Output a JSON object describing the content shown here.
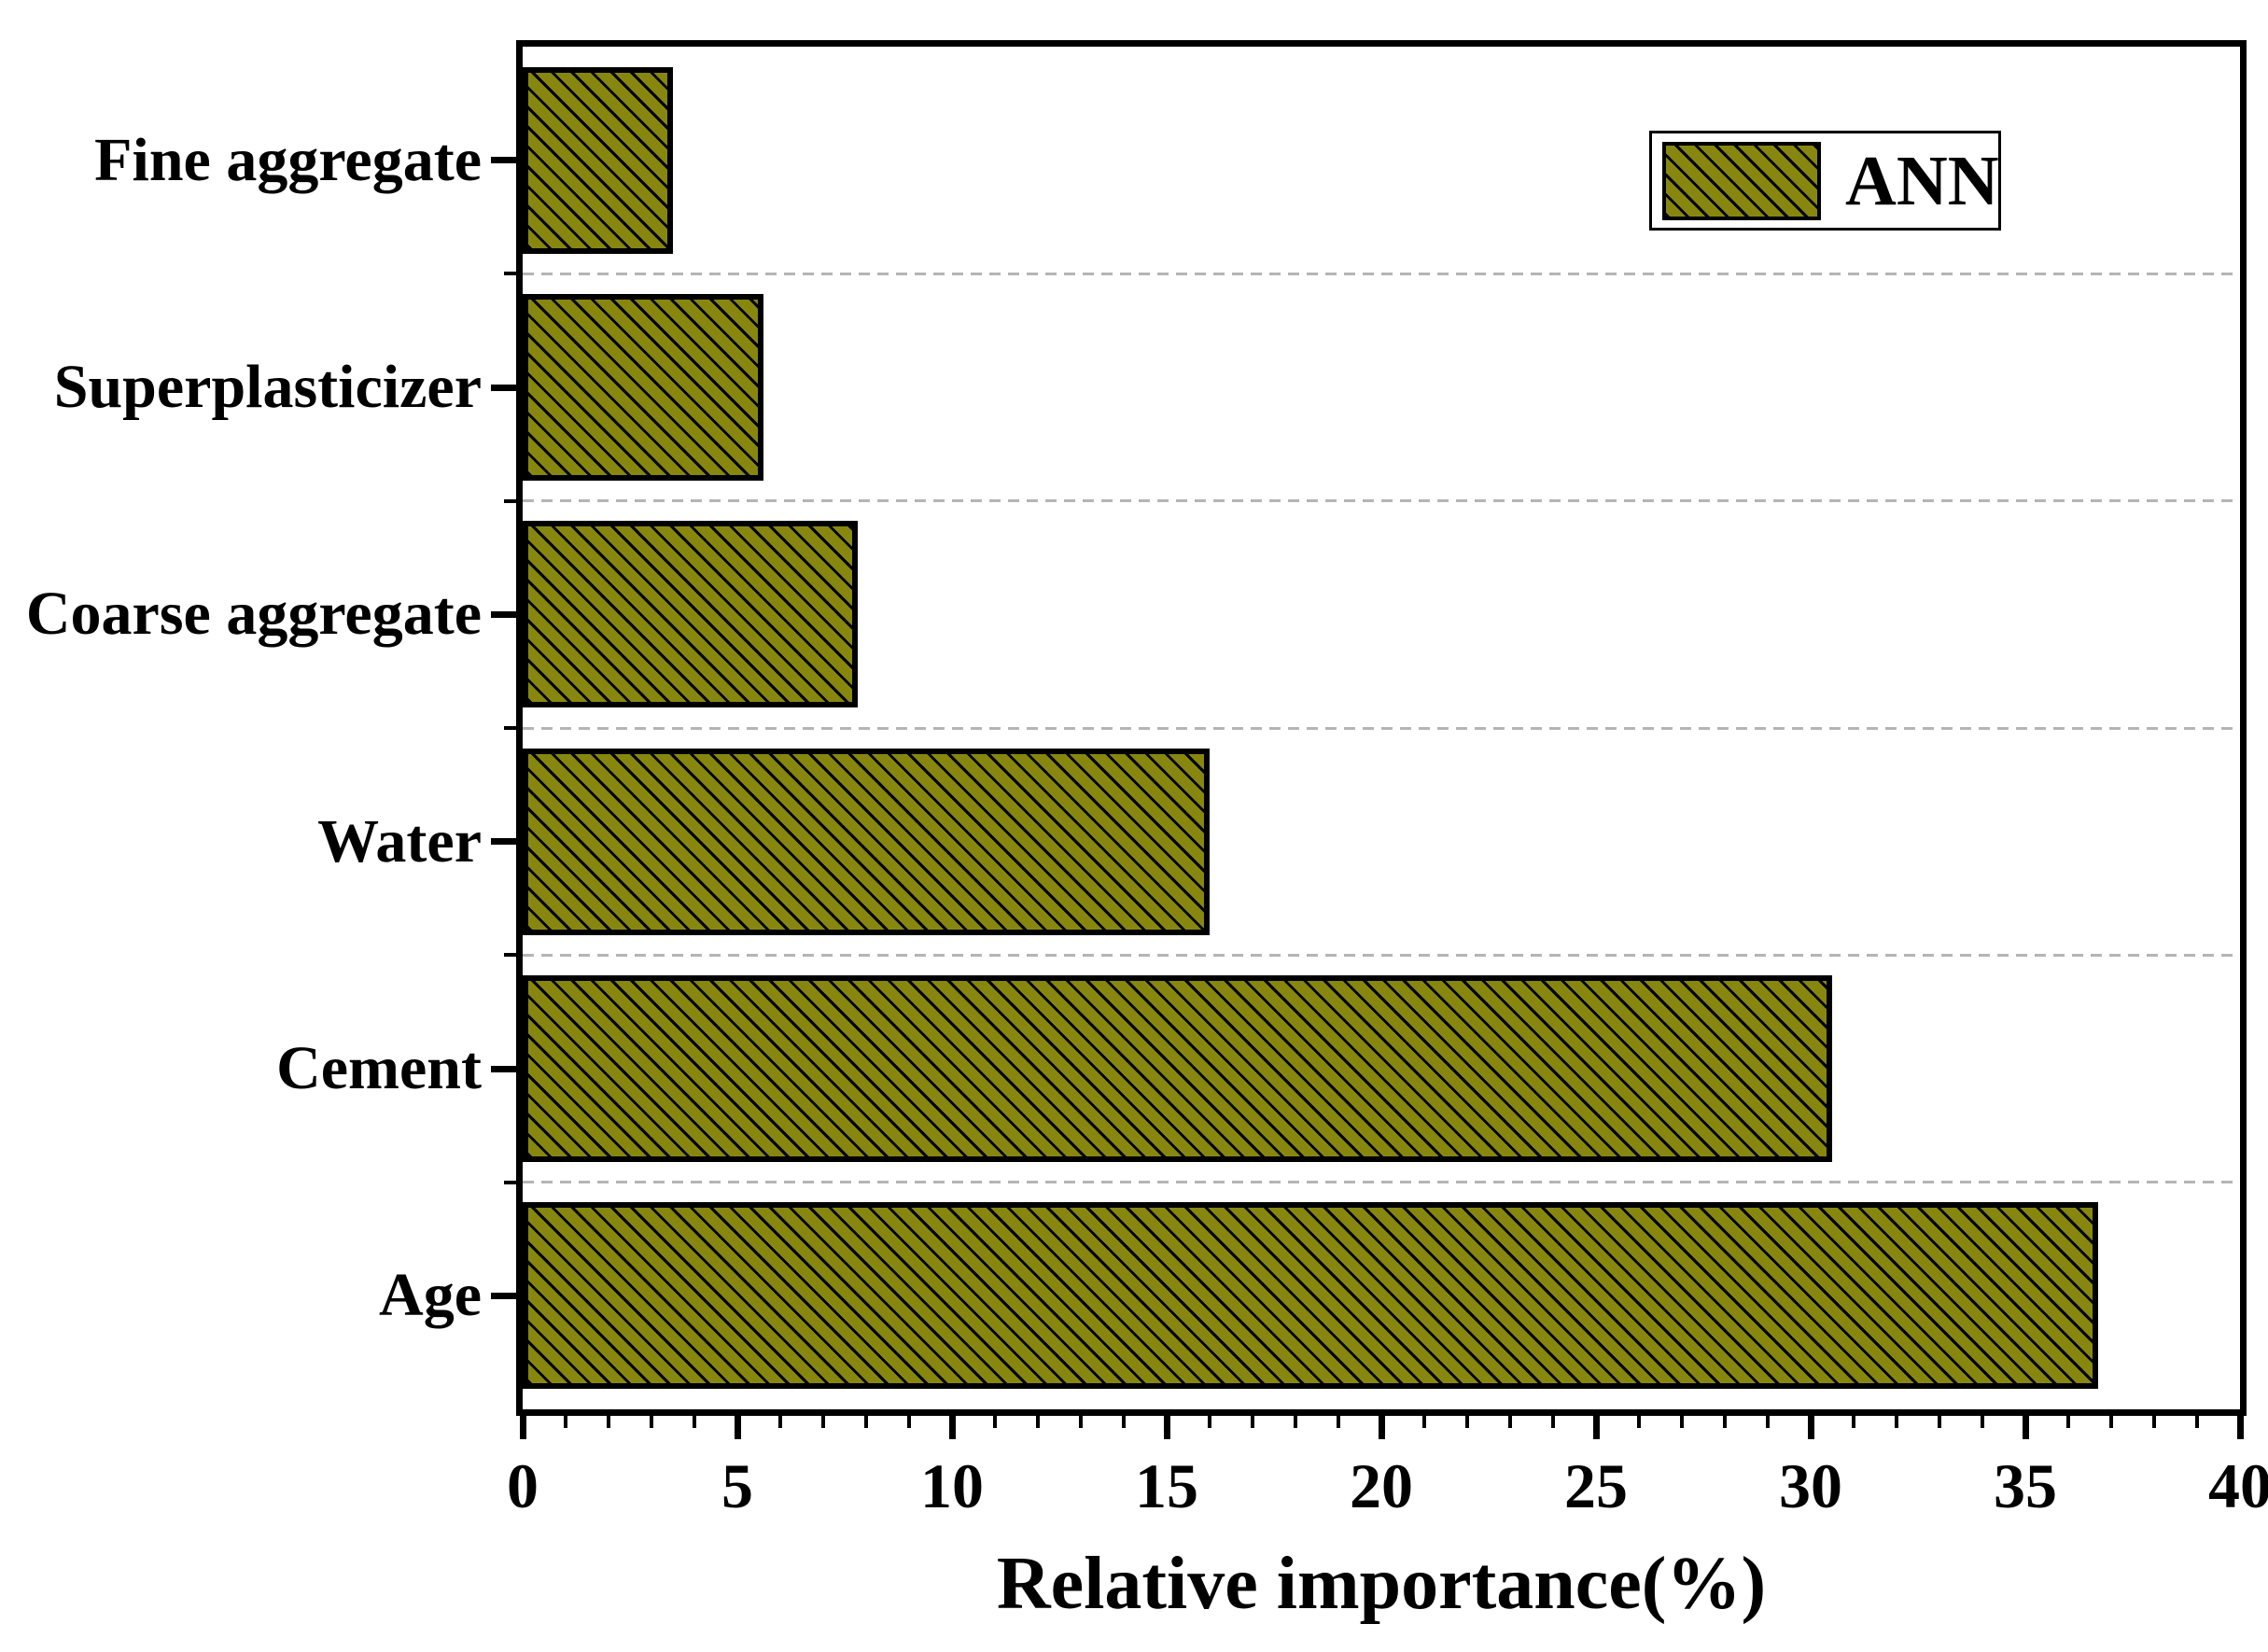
{
  "figure": {
    "background": "#ffffff",
    "text_color": "#000000"
  },
  "legend": {
    "label": "ANN",
    "position": "upper right inside plot",
    "swatch": "olive rectangle with black diagonal hatch"
  },
  "x_axis": {
    "title": "Relative importance(%)",
    "tick_labels": [
      "0",
      "5",
      "10",
      "15",
      "20",
      "25",
      "30",
      "35",
      "40"
    ],
    "minor_tick_step": 1
  },
  "y_axis": {
    "categories_top_to_bottom": [
      "Fine aggregate",
      "Superplasticizer",
      "Coarse aggregate",
      "Water",
      "Cement",
      "Age"
    ]
  },
  "chart_data": {
    "type": "bar",
    "orientation": "horizontal",
    "title": "",
    "xlabel": "Relative importance(%)",
    "ylabel": "",
    "xlim": [
      0,
      40
    ],
    "x_major_tick_step": 5,
    "x_minor_tick_step": 1,
    "grid": "dashed light-gray horizontal lines at category band boundaries",
    "legend_position": "upper right inside plot",
    "categories": [
      "Fine aggregate",
      "Superplasticizer",
      "Coarse aggregate",
      "Water",
      "Cement",
      "Age"
    ],
    "series": [
      {
        "name": "ANN",
        "values": [
          3.5,
          5.6,
          7.8,
          16.0,
          30.5,
          36.7
        ]
      }
    ],
    "bar_fill_color": "#87870f",
    "bar_edge_color": "#000000",
    "bar_hatch": "black diagonal lines top-left to bottom-right",
    "gridline_color": "#b5b5b5",
    "note": "categories listed top to bottom; bars lengthen toward Age at bottom"
  }
}
